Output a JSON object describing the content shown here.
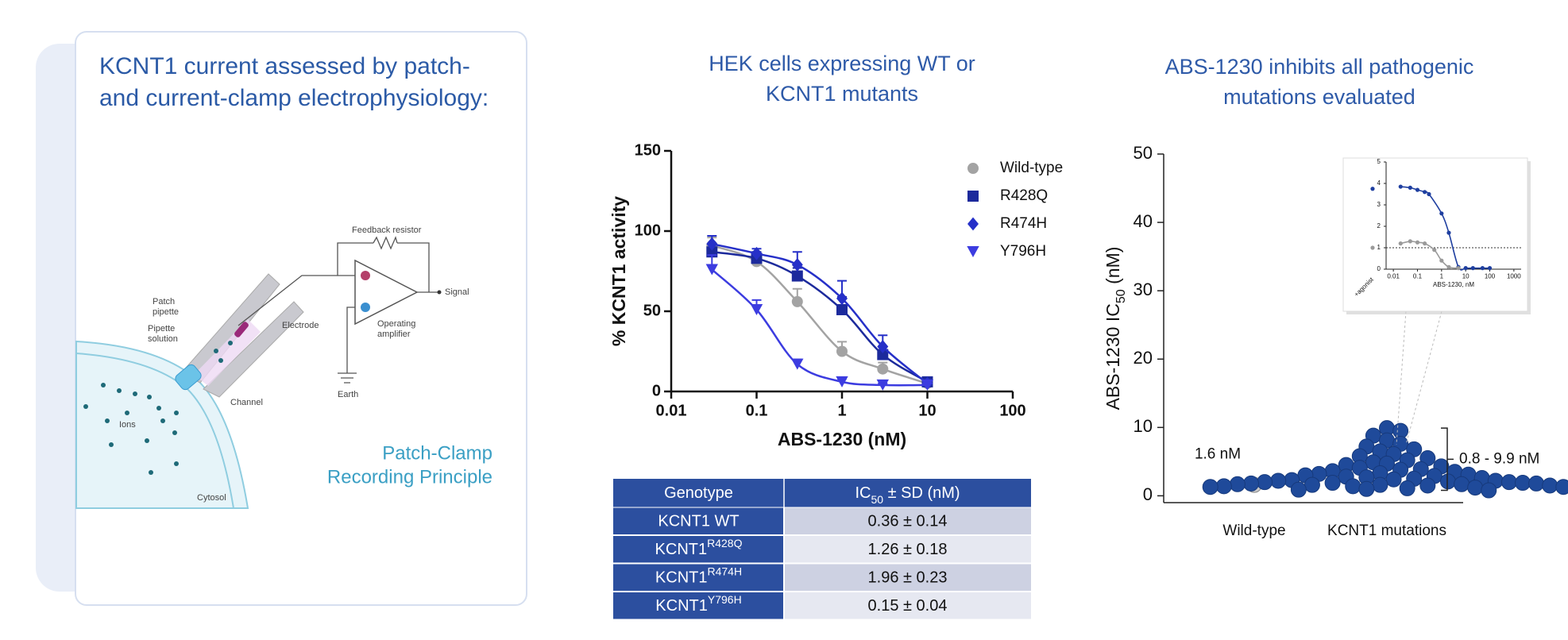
{
  "left_panel": {
    "title": [
      "KCNT1 current assessed by patch-",
      "and current-clamp electrophysiology:"
    ],
    "diagram": {
      "feedback_resistor": "Feedback resistor",
      "signal": "Signal",
      "patch_pipette": [
        "Patch",
        "pipette"
      ],
      "pipette_solution": [
        "Pipette",
        "solution"
      ],
      "electrode": "Electrode",
      "operating_amplifier": [
        "Operating",
        "amplifier"
      ],
      "channel": "Channel",
      "ions": "Ions",
      "earth": "Earth",
      "cytosol": "Cytosol"
    },
    "caption": [
      "Patch-Clamp",
      "Recording Principle"
    ]
  },
  "chart_data": [
    {
      "type": "line",
      "title": [
        "HEK cells expressing WT or",
        "KCNT1 mutants"
      ],
      "x_label": "ABS-1230 (nM)",
      "y_label": "% KCNT1 activity",
      "log_x": true,
      "xlim": [
        0.01,
        100
      ],
      "xticks": [
        0.01,
        0.1,
        1,
        10,
        100
      ],
      "ylim": [
        0,
        150
      ],
      "yticks": [
        0,
        50,
        100,
        150
      ],
      "legend": "top-right",
      "x": [
        0.03,
        0.1,
        0.3,
        1,
        3,
        10
      ],
      "series": [
        {
          "name": "Wild-type",
          "color": "#a3a3a3",
          "marker": "circle",
          "values": [
            91,
            81,
            56,
            25,
            14,
            5
          ],
          "errors": [
            5,
            3,
            8,
            6,
            4,
            2
          ]
        },
        {
          "name": "R428Q",
          "color": "#1c2a9c",
          "marker": "square",
          "values": [
            87,
            83,
            72,
            51,
            23,
            6
          ],
          "errors": [
            5,
            4,
            5,
            8,
            5,
            2
          ]
        },
        {
          "name": "R474H",
          "color": "#2630c8",
          "marker": "diamond",
          "values": [
            92,
            86,
            79,
            58,
            28,
            5
          ],
          "errors": [
            5,
            3,
            8,
            11,
            7,
            2
          ]
        },
        {
          "name": "Y796H",
          "color": "#3c3ce0",
          "marker": "triangle-down",
          "values": [
            76,
            51,
            17,
            6,
            4,
            4
          ],
          "errors": [
            9,
            6,
            3,
            2,
            1,
            1
          ]
        }
      ]
    },
    {
      "type": "strip",
      "title": [
        "ABS-1230 inhibits all pathogenic",
        "mutations evaluated"
      ],
      "y_label": {
        "text": "ABS-1230 IC",
        "sub": "50",
        "after": " (nM)"
      },
      "categories": [
        "Wild-type",
        "KCNT1 mutations"
      ],
      "ylim": [
        -1,
        50
      ],
      "yticks": [
        0,
        10,
        20,
        30,
        40,
        50
      ],
      "series": [
        {
          "color": "#c9c9c9",
          "values": [
            1.6
          ],
          "value_labels": [
            "1.6 nM"
          ]
        },
        {
          "color": "#1f4a9a",
          "values": [
            9.9,
            9.5,
            8.8,
            8.1,
            7.6,
            7.2,
            6.8,
            6.5,
            6.1,
            5.8,
            5.5,
            5.2,
            4.9,
            4.7,
            4.5,
            4.3,
            4.1,
            3.9,
            3.8,
            3.6,
            3.5,
            3.3,
            3.2,
            3.1,
            3.0,
            2.9,
            2.8,
            2.7,
            2.6,
            2.5,
            2.4,
            2.3,
            2.2,
            2.2,
            2.1,
            2.0,
            2.0,
            1.9,
            1.9,
            1.8,
            1.8,
            1.7,
            1.7,
            1.6,
            1.6,
            1.5,
            1.5,
            1.4,
            1.4,
            1.3,
            1.3,
            1.2,
            1.2,
            1.1,
            1.0,
            0.9,
            0.8
          ]
        }
      ],
      "annotations": [
        "0.8 - 9.9 nM"
      ]
    },
    {
      "type": "line",
      "x_label": "ABS-1230, nM",
      "reference_category": "+agonist",
      "log_x": true,
      "xlim": [
        0.005,
        2000
      ],
      "xticks": [
        0.01,
        0.1,
        1,
        10,
        100,
        1000
      ],
      "ylim": [
        0,
        5
      ],
      "yticks": [
        0,
        1,
        2,
        3,
        4,
        5
      ],
      "hline": 1,
      "series": [
        {
          "color": "#1f3fa0",
          "reference_value": 3.75,
          "x": [
            0.02,
            0.05,
            0.1,
            0.2,
            0.3,
            1,
            2,
            5,
            10,
            20,
            50,
            100
          ],
          "values": [
            3.85,
            3.8,
            3.7,
            3.6,
            3.5,
            2.6,
            1.7,
            0.1,
            0.05,
            0.05,
            0.05,
            0.05
          ]
        },
        {
          "color": "#9a9a9a",
          "reference_value": 1.0,
          "x": [
            0.02,
            0.05,
            0.1,
            0.2,
            0.5,
            1,
            2,
            5
          ],
          "values": [
            1.2,
            1.3,
            1.25,
            1.2,
            0.9,
            0.4,
            0.1,
            0.05
          ]
        }
      ]
    }
  ],
  "table": {
    "columns": [
      {
        "text": "Genotype"
      },
      {
        "text": "IC",
        "sub": "50",
        "after": " ± SD (nM)"
      }
    ],
    "rows": [
      {
        "genotype": "KCNT1 WT",
        "ic50": "0.36 ± 0.14"
      },
      {
        "genotype": "KCNT1",
        "sup": "R428Q",
        "ic50": "1.26 ± 0.18"
      },
      {
        "genotype": "KCNT1",
        "sup": "R474H",
        "ic50": "1.96 ± 0.23"
      },
      {
        "genotype": "KCNT1",
        "sup": "Y796H",
        "ic50": "0.15 ± 0.04"
      }
    ]
  }
}
